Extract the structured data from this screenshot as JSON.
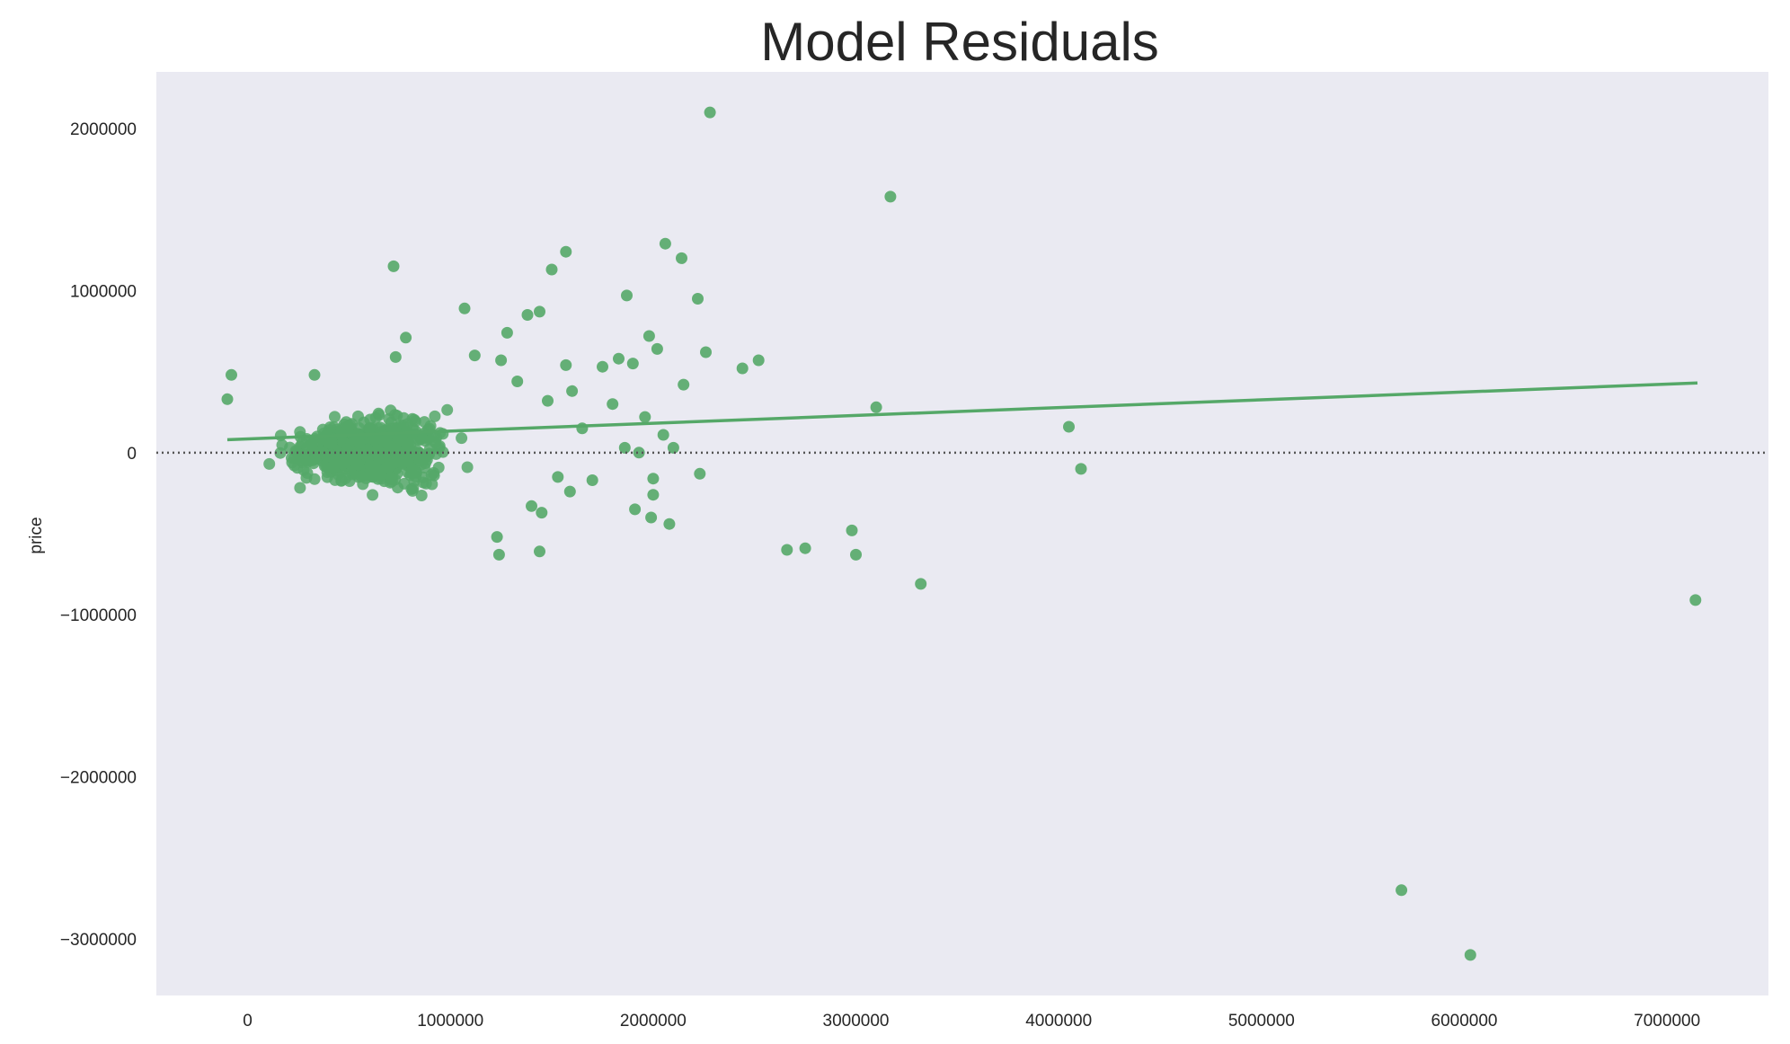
{
  "chart_data": {
    "type": "scatter",
    "title": "Model Residuals",
    "xlabel": "",
    "ylabel": "price",
    "xlim": [
      -450000,
      7500000
    ],
    "ylim": [
      -3350000,
      2350000
    ],
    "x_ticks": [
      0,
      1000000,
      2000000,
      3000000,
      4000000,
      5000000,
      6000000,
      7000000
    ],
    "x_tick_labels": [
      "0",
      "1000000",
      "2000000",
      "3000000",
      "4000000",
      "5000000",
      "6000000",
      "7000000"
    ],
    "y_ticks": [
      2000000,
      1000000,
      0,
      -1000000,
      -2000000,
      -3000000
    ],
    "y_tick_labels": [
      "2000000",
      "1000000",
      "0",
      "−1000000",
      "−2000000",
      "−3000000"
    ],
    "grid": false,
    "legend": "none",
    "colors": {
      "points": "#55a868",
      "background": "#eaeaf2",
      "zero_line": "#555555"
    },
    "zero_line": 0,
    "fit_line": {
      "x": [
        -100000,
        7150000
      ],
      "y": [
        80000,
        430000
      ]
    },
    "cluster": {
      "x_center": 600000,
      "x_spread": 280000,
      "y_spread": 120000,
      "count": 900
    },
    "points": [
      {
        "x": 2280000,
        "y": 2100000
      },
      {
        "x": 3170000,
        "y": 1580000
      },
      {
        "x": 720000,
        "y": 1150000
      },
      {
        "x": 2060000,
        "y": 1290000
      },
      {
        "x": 2140000,
        "y": 1200000
      },
      {
        "x": 1570000,
        "y": 1240000
      },
      {
        "x": 1500000,
        "y": 1130000
      },
      {
        "x": 1870000,
        "y": 970000
      },
      {
        "x": 2220000,
        "y": 950000
      },
      {
        "x": 1070000,
        "y": 890000
      },
      {
        "x": 1380000,
        "y": 850000
      },
      {
        "x": 1440000,
        "y": 870000
      },
      {
        "x": 1280000,
        "y": 740000
      },
      {
        "x": 780000,
        "y": 710000
      },
      {
        "x": 1980000,
        "y": 720000
      },
      {
        "x": 2020000,
        "y": 640000
      },
      {
        "x": 2260000,
        "y": 620000
      },
      {
        "x": 2440000,
        "y": 520000
      },
      {
        "x": 2520000,
        "y": 570000
      },
      {
        "x": 2150000,
        "y": 420000
      },
      {
        "x": 1830000,
        "y": 580000
      },
      {
        "x": 1900000,
        "y": 550000
      },
      {
        "x": 1750000,
        "y": 530000
      },
      {
        "x": 1570000,
        "y": 540000
      },
      {
        "x": 1800000,
        "y": 300000
      },
      {
        "x": 1600000,
        "y": 380000
      },
      {
        "x": 1960000,
        "y": 220000
      },
      {
        "x": 3100000,
        "y": 280000
      },
      {
        "x": 4050000,
        "y": 160000
      },
      {
        "x": 4110000,
        "y": -100000
      },
      {
        "x": -100000,
        "y": 330000
      },
      {
        "x": -80000,
        "y": 480000
      },
      {
        "x": 330000,
        "y": 480000
      },
      {
        "x": 2230000,
        "y": -130000
      },
      {
        "x": 2000000,
        "y": -160000
      },
      {
        "x": 2000000,
        "y": -260000
      },
      {
        "x": 1910000,
        "y": -350000
      },
      {
        "x": 1990000,
        "y": -400000
      },
      {
        "x": 2080000,
        "y": -440000
      },
      {
        "x": 1230000,
        "y": -520000
      },
      {
        "x": 1240000,
        "y": -630000
      },
      {
        "x": 1440000,
        "y": -610000
      },
      {
        "x": 1450000,
        "y": -370000
      },
      {
        "x": 1400000,
        "y": -330000
      },
      {
        "x": 2660000,
        "y": -600000
      },
      {
        "x": 2750000,
        "y": -590000
      },
      {
        "x": 2980000,
        "y": -480000
      },
      {
        "x": 3000000,
        "y": -630000
      },
      {
        "x": 3320000,
        "y": -810000
      },
      {
        "x": 7140000,
        "y": -910000
      },
      {
        "x": 5690000,
        "y": -2700000
      },
      {
        "x": 6030000,
        "y": -3100000
      },
      {
        "x": 1700000,
        "y": -170000
      },
      {
        "x": 1590000,
        "y": -240000
      },
      {
        "x": 1530000,
        "y": -150000
      },
      {
        "x": 1650000,
        "y": 150000
      },
      {
        "x": 2100000,
        "y": 30000
      },
      {
        "x": 2050000,
        "y": 110000
      },
      {
        "x": 1930000,
        "y": 0
      },
      {
        "x": 1860000,
        "y": 30000
      },
      {
        "x": 1480000,
        "y": 320000
      },
      {
        "x": 1330000,
        "y": 440000
      },
      {
        "x": 1250000,
        "y": 570000
      },
      {
        "x": 1120000,
        "y": 600000
      },
      {
        "x": 730000,
        "y": 590000
      }
    ]
  }
}
